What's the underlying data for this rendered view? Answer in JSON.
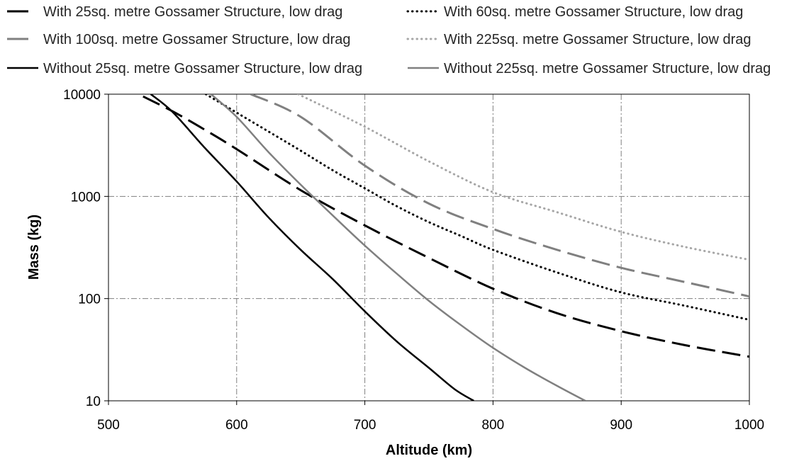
{
  "chart_data": {
    "type": "line",
    "xlabel": "Altitude (km)",
    "ylabel": "Mass (kg)",
    "xlim": [
      500,
      1000
    ],
    "ylim": [
      10,
      10000
    ],
    "yscale": "log",
    "grid": true,
    "legend_position": "top",
    "x_ticks": [
      "500",
      "600",
      "700",
      "800",
      "900",
      "1000"
    ],
    "y_ticks": [
      "10",
      "100",
      "1000",
      "10000"
    ],
    "series": [
      {
        "name": "With 25sq. metre Gossamer Structure, low drag",
        "color": "#000000",
        "style": "long-dash",
        "points": [
          [
            527,
            9500
          ],
          [
            550,
            6800
          ],
          [
            575,
            4500
          ],
          [
            600,
            2900
          ],
          [
            650,
            1150
          ],
          [
            700,
            520
          ],
          [
            750,
            250
          ],
          [
            800,
            125
          ],
          [
            850,
            72
          ],
          [
            900,
            48
          ],
          [
            950,
            35
          ],
          [
            1000,
            27
          ]
        ]
      },
      {
        "name": "With 60sq. metre Gossamer Structure, low drag",
        "color": "#000000",
        "style": "dotted",
        "points": [
          [
            576,
            10000
          ],
          [
            600,
            6600
          ],
          [
            625,
            4300
          ],
          [
            650,
            2800
          ],
          [
            675,
            1800
          ],
          [
            700,
            1200
          ],
          [
            725,
            800
          ],
          [
            750,
            560
          ],
          [
            775,
            410
          ],
          [
            800,
            300
          ],
          [
            850,
            180
          ],
          [
            900,
            115
          ],
          [
            950,
            85
          ],
          [
            1000,
            62
          ]
        ]
      },
      {
        "name": "With 100sq. metre Gossamer Structure, low drag",
        "color": "#808080",
        "style": "long-dash",
        "points": [
          [
            611,
            10000
          ],
          [
            650,
            6000
          ],
          [
            700,
            2000
          ],
          [
            750,
            850
          ],
          [
            800,
            480
          ],
          [
            850,
            300
          ],
          [
            900,
            200
          ],
          [
            950,
            145
          ],
          [
            1000,
            105
          ]
        ]
      },
      {
        "name": "With 225sq. metre Gossamer Structure, low drag",
        "color": "#a6a6a6",
        "style": "dotted",
        "points": [
          [
            648,
            10000
          ],
          [
            700,
            4800
          ],
          [
            750,
            2200
          ],
          [
            800,
            1100
          ],
          [
            850,
            700
          ],
          [
            900,
            450
          ],
          [
            950,
            320
          ],
          [
            1000,
            240
          ]
        ]
      },
      {
        "name": "Without 25sq. metre Gossamer Structure, low drag",
        "color": "#000000",
        "style": "solid",
        "points": [
          [
            533,
            10000
          ],
          [
            550,
            6700
          ],
          [
            575,
            3000
          ],
          [
            600,
            1400
          ],
          [
            625,
            620
          ],
          [
            650,
            300
          ],
          [
            675,
            155
          ],
          [
            700,
            75
          ],
          [
            725,
            38
          ],
          [
            750,
            21
          ],
          [
            770,
            13
          ],
          [
            785,
            10
          ]
        ]
      },
      {
        "name": "Without 225sq. metre Gossamer Structure, low drag",
        "color": "#808080",
        "style": "solid",
        "points": [
          [
            580,
            10000
          ],
          [
            600,
            6000
          ],
          [
            625,
            2700
          ],
          [
            650,
            1300
          ],
          [
            675,
            650
          ],
          [
            700,
            330
          ],
          [
            725,
            175
          ],
          [
            750,
            95
          ],
          [
            775,
            55
          ],
          [
            800,
            33
          ],
          [
            825,
            21
          ],
          [
            850,
            14
          ],
          [
            872,
            10
          ]
        ]
      }
    ]
  }
}
